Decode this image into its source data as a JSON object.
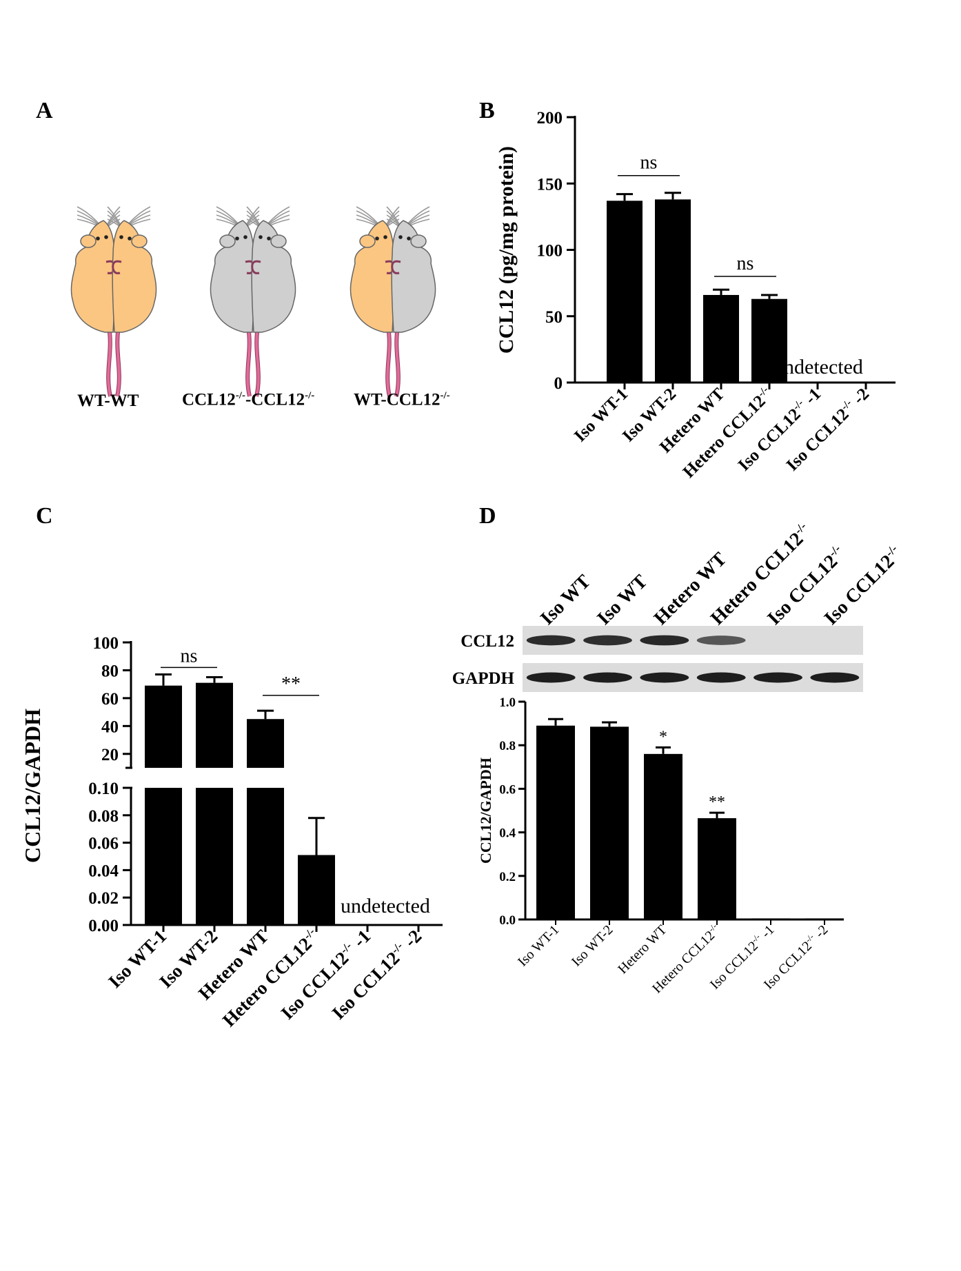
{
  "panels": {
    "A": "A",
    "B": "B",
    "C": "C",
    "D": "D"
  },
  "colors": {
    "bar": "#000000",
    "wt_mouse": "#fbc682",
    "ko_mouse": "#cfcfcf",
    "tail": "#e26a99",
    "blot_bg": "#dcdcdc",
    "band": "#1e1e1e"
  },
  "panel_a": {
    "labels": [
      {
        "base": "WT-WT",
        "sup1": "",
        "mid": "",
        "sup2": ""
      },
      {
        "base": "CCL12",
        "sup1": "-/-",
        "mid": "-CCL12",
        "sup2": "-/-"
      },
      {
        "base": "WT-CCL12",
        "sup1": "-/-",
        "mid": "",
        "sup2": ""
      }
    ]
  },
  "chart_data": [
    {
      "panel": "B",
      "type": "bar",
      "categories": [
        "Iso WT-1",
        "Iso WT-2",
        "Hetero WT",
        "Hetero CCL12-/-",
        "Iso CCL12-/- -1",
        "Iso CCL12-/- -2"
      ],
      "category_parts": [
        {
          "base": "Iso WT-1",
          "sup": "",
          "tail": ""
        },
        {
          "base": "Iso WT-2",
          "sup": "",
          "tail": ""
        },
        {
          "base": "Hetero WT",
          "sup": "",
          "tail": ""
        },
        {
          "base": "Hetero CCL12",
          "sup": "-/-",
          "tail": ""
        },
        {
          "base": "Iso CCL12",
          "sup": "-/-",
          "tail": " -1"
        },
        {
          "base": "Iso CCL12",
          "sup": "-/-",
          "tail": " -2"
        }
      ],
      "values": [
        137,
        138,
        66,
        63,
        0,
        0
      ],
      "errors": [
        5,
        5,
        4,
        3,
        0,
        0
      ],
      "ylabel": "CCL12 (pg/mg protein)",
      "ylim": [
        0,
        200
      ],
      "yticks": [
        "0",
        "50",
        "100",
        "150",
        "200"
      ],
      "annotations": [
        {
          "text": "ns",
          "from": 0,
          "to": 1,
          "y": 156
        },
        {
          "text": "ns",
          "from": 2,
          "to": 3,
          "y": 80
        }
      ],
      "note": "undetected"
    },
    {
      "panel": "C",
      "type": "bar",
      "categories": [
        "Iso WT-1",
        "Iso WT-2",
        "Hetero WT",
        "Hetero CCL12-/-",
        "Iso CCL12-/- -1",
        "Iso CCL12-/- -2"
      ],
      "category_parts": [
        {
          "base": "Iso WT-1",
          "sup": "",
          "tail": ""
        },
        {
          "base": "Iso WT-2",
          "sup": "",
          "tail": ""
        },
        {
          "base": "Hetero WT",
          "sup": "",
          "tail": ""
        },
        {
          "base": "Hetero CCL12",
          "sup": "-/-",
          "tail": ""
        },
        {
          "base": "Iso CCL12",
          "sup": "-/-",
          "tail": " -1"
        },
        {
          "base": "Iso CCL12",
          "sup": "-/-",
          "tail": " -2"
        }
      ],
      "values": [
        69,
        71,
        45,
        0.051,
        0,
        0
      ],
      "errors": [
        8,
        4,
        6,
        0.027,
        0,
        0
      ],
      "ylabel": "CCL12/GAPDH",
      "y_upper_range": [
        10,
        100
      ],
      "y_lower_range": [
        0,
        0.1
      ],
      "yticks_upper": [
        "100",
        "80",
        "60",
        "40",
        "20"
      ],
      "yticks_lower": [
        "0.10",
        "0.08",
        "0.06",
        "0.04",
        "0.02",
        "0.00"
      ],
      "annotations": [
        {
          "text": "ns",
          "from": 0,
          "to": 1,
          "y": 82
        },
        {
          "text": "**",
          "from": 2,
          "to": 3,
          "y": 62
        }
      ],
      "note": "undetected"
    },
    {
      "panel": "D",
      "type": "bar",
      "blot_columns": [
        {
          "base": "Iso WT",
          "sup": ""
        },
        {
          "base": "Iso WT",
          "sup": ""
        },
        {
          "base": "Hetero WT",
          "sup": ""
        },
        {
          "base": "Hetero CCL12",
          "sup": "-/-"
        },
        {
          "base": "Iso CCL12",
          "sup": "-/-"
        },
        {
          "base": "Iso CCL12",
          "sup": "-/-"
        }
      ],
      "blot_rows": [
        {
          "label": "CCL12",
          "intensity": [
            0.9,
            0.88,
            0.93,
            0.55,
            0,
            0
          ]
        },
        {
          "label": "GAPDH",
          "intensity": [
            1,
            1,
            1,
            1,
            1,
            1
          ]
        }
      ],
      "categories": [
        "Iso WT-1",
        "Iso WT-2",
        "Hetero WT",
        "Hetero CCL12-/-",
        "Iso CCL12-/- -1",
        "Iso CCL12-/- -2"
      ],
      "category_parts": [
        {
          "base": "Iso WT-1",
          "sup": "",
          "tail": ""
        },
        {
          "base": "Iso WT-2",
          "sup": "",
          "tail": ""
        },
        {
          "base": "Hetero WT",
          "sup": "",
          "tail": ""
        },
        {
          "base": "Hetero CCL12",
          "sup": "-/-",
          "tail": ""
        },
        {
          "base": "Iso CCL12",
          "sup": "-/-",
          "tail": " -1"
        },
        {
          "base": "Iso CCL12",
          "sup": "-/-",
          "tail": " -2"
        }
      ],
      "values": [
        0.89,
        0.885,
        0.76,
        0.465,
        0.005,
        0.005
      ],
      "errors": [
        0.03,
        0.02,
        0.03,
        0.025,
        0,
        0
      ],
      "ylabel": "CCL12/GAPDH",
      "ylim": [
        0,
        1.0
      ],
      "yticks": [
        "0.0",
        "0.2",
        "0.4",
        "0.6",
        "0.8",
        "1.0"
      ],
      "sig_marks": [
        "",
        "",
        "*",
        "**",
        "",
        ""
      ]
    }
  ]
}
